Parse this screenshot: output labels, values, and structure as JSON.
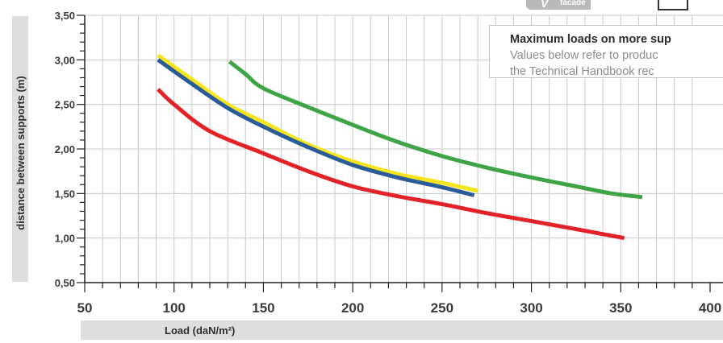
{
  "logo": {
    "mark": "V",
    "word": "facade"
  },
  "info_box": {
    "title": "Maximum loads on more sup",
    "lines": [
      "Values below refer to produc",
      "the Technical Handbook rec"
    ]
  },
  "chart_data": {
    "type": "line",
    "xlabel": "Load (daN/m²)",
    "ylabel": "distance between supports (m)",
    "xlim": [
      50,
      400
    ],
    "ylim": [
      0.5,
      3.5
    ],
    "x_ticks": [
      "50",
      "100",
      "150",
      "200",
      "250",
      "300",
      "350",
      "400"
    ],
    "y_ticks": [
      "0,50",
      "1,00",
      "1,50",
      "2,00",
      "2,50",
      "3,00",
      "3,50"
    ],
    "grid": true,
    "colors": {
      "yellow": "#f7e51c",
      "blue": "#2a5c9a",
      "red": "#e32228",
      "green": "#3fa445"
    },
    "series": [
      {
        "color": "#f7e51c",
        "points": [
          [
            91,
            3.05
          ],
          [
            110,
            2.78
          ],
          [
            130,
            2.5
          ],
          [
            150,
            2.3
          ],
          [
            175,
            2.05
          ],
          [
            200,
            1.86
          ],
          [
            225,
            1.72
          ],
          [
            250,
            1.62
          ],
          [
            270,
            1.53
          ]
        ]
      },
      {
        "color": "#2a5c9a",
        "points": [
          [
            91,
            3.0
          ],
          [
            110,
            2.73
          ],
          [
            130,
            2.46
          ],
          [
            150,
            2.25
          ],
          [
            175,
            2.02
          ],
          [
            200,
            1.82
          ],
          [
            225,
            1.68
          ],
          [
            250,
            1.57
          ],
          [
            268,
            1.48
          ]
        ]
      },
      {
        "color": "#e32228",
        "points": [
          [
            91,
            2.67
          ],
          [
            100,
            2.5
          ],
          [
            120,
            2.2
          ],
          [
            150,
            1.95
          ],
          [
            175,
            1.75
          ],
          [
            200,
            1.58
          ],
          [
            225,
            1.47
          ],
          [
            250,
            1.38
          ],
          [
            275,
            1.28
          ],
          [
            300,
            1.19
          ],
          [
            325,
            1.1
          ],
          [
            352,
            1.0
          ]
        ]
      },
      {
        "color": "#3fa445",
        "points": [
          [
            131,
            2.98
          ],
          [
            140,
            2.84
          ],
          [
            150,
            2.68
          ],
          [
            175,
            2.47
          ],
          [
            200,
            2.27
          ],
          [
            225,
            2.08
          ],
          [
            250,
            1.92
          ],
          [
            275,
            1.79
          ],
          [
            300,
            1.68
          ],
          [
            325,
            1.58
          ],
          [
            345,
            1.5
          ],
          [
            362,
            1.46
          ]
        ]
      }
    ]
  }
}
